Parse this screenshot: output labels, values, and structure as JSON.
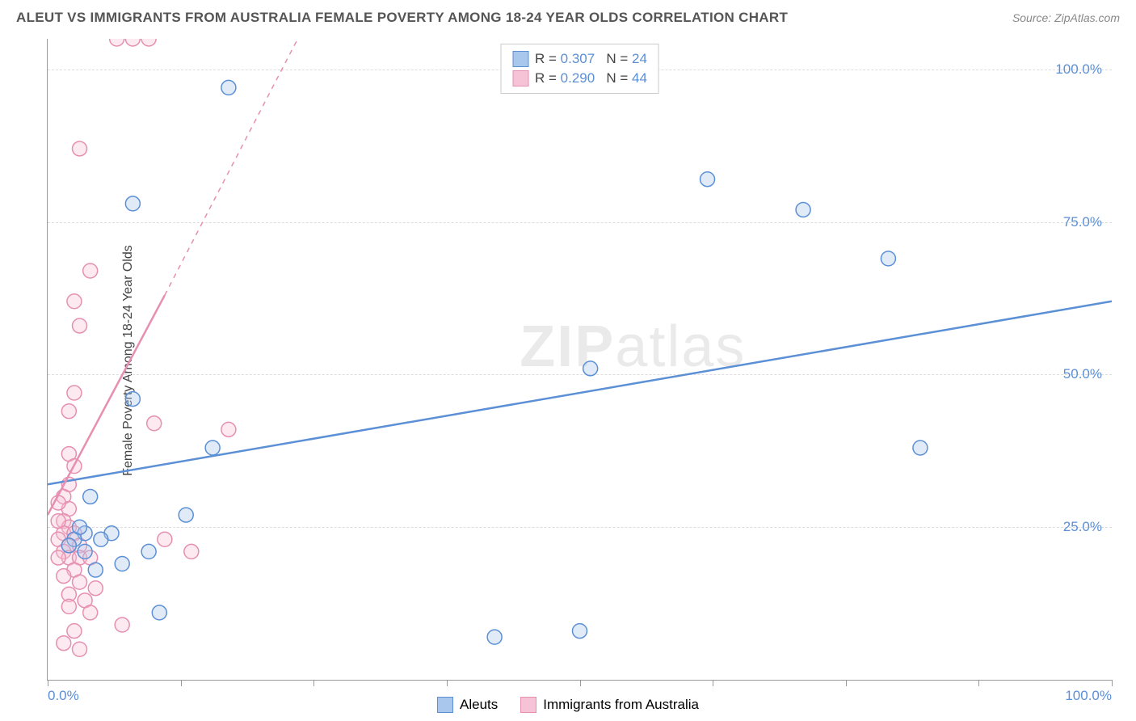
{
  "header": {
    "title": "ALEUT VS IMMIGRANTS FROM AUSTRALIA FEMALE POVERTY AMONG 18-24 YEAR OLDS CORRELATION CHART",
    "source": "Source: ZipAtlas.com"
  },
  "watermark": "ZIPatlas",
  "chart": {
    "type": "scatter",
    "ylabel": "Female Poverty Among 18-24 Year Olds",
    "xlim": [
      0,
      100
    ],
    "ylim": [
      0,
      105
    ],
    "ytick_labels": [
      "25.0%",
      "50.0%",
      "75.0%",
      "100.0%"
    ],
    "ytick_values": [
      25,
      50,
      75,
      100
    ],
    "xtick_labels": [
      "0.0%",
      "100.0%"
    ],
    "xtick_values": [
      0,
      100
    ],
    "xtick_marks": [
      0,
      12.5,
      25,
      37.5,
      50,
      62.5,
      75,
      87.5,
      100
    ],
    "ytick_color": "#5b8fd6",
    "xtick_color": "#5b8fd6",
    "grid_color": "#dddddd",
    "axis_color": "#999999",
    "background_color": "#ffffff",
    "marker_radius": 9,
    "marker_stroke_width": 1.5,
    "marker_fill_opacity": 0.35,
    "line_width": 2.5,
    "dash_width": 1.5,
    "series": [
      {
        "name": "Aleuts",
        "color_stroke": "#5b8fd6",
        "color_fill": "#a9c6ec",
        "R": "0.307",
        "N": "24",
        "trend_solid": {
          "x1": 0,
          "y1": 32,
          "x2": 100,
          "y2": 62
        },
        "points": [
          {
            "x": 17,
            "y": 97
          },
          {
            "x": 8,
            "y": 78
          },
          {
            "x": 62,
            "y": 82
          },
          {
            "x": 71,
            "y": 77
          },
          {
            "x": 79,
            "y": 69
          },
          {
            "x": 51,
            "y": 51
          },
          {
            "x": 8,
            "y": 46
          },
          {
            "x": 15.5,
            "y": 38
          },
          {
            "x": 82,
            "y": 38
          },
          {
            "x": 4,
            "y": 30
          },
          {
            "x": 13,
            "y": 27
          },
          {
            "x": 6,
            "y": 24
          },
          {
            "x": 3.5,
            "y": 24
          },
          {
            "x": 2.5,
            "y": 23
          },
          {
            "x": 3.5,
            "y": 21
          },
          {
            "x": 7,
            "y": 19
          },
          {
            "x": 9.5,
            "y": 21
          },
          {
            "x": 4.5,
            "y": 18
          },
          {
            "x": 10.5,
            "y": 11
          },
          {
            "x": 42,
            "y": 7
          },
          {
            "x": 50,
            "y": 8
          },
          {
            "x": 5,
            "y": 23
          },
          {
            "x": 3,
            "y": 25
          },
          {
            "x": 2,
            "y": 22
          }
        ]
      },
      {
        "name": "Immigrants from Australia",
        "color_stroke": "#e68fb0",
        "color_fill": "#f5c3d5",
        "R": "0.290",
        "N": "44",
        "trend_solid": {
          "x1": 0,
          "y1": 27,
          "x2": 11,
          "y2": 63
        },
        "trend_dashed": {
          "x1": 11,
          "y1": 63,
          "x2": 23.5,
          "y2": 105
        },
        "points": [
          {
            "x": 6.5,
            "y": 105
          },
          {
            "x": 8,
            "y": 105
          },
          {
            "x": 9.5,
            "y": 105
          },
          {
            "x": 3,
            "y": 87
          },
          {
            "x": 4,
            "y": 67
          },
          {
            "x": 2.5,
            "y": 62
          },
          {
            "x": 3,
            "y": 58
          },
          {
            "x": 2.5,
            "y": 47
          },
          {
            "x": 2,
            "y": 44
          },
          {
            "x": 10,
            "y": 42
          },
          {
            "x": 17,
            "y": 41
          },
          {
            "x": 2,
            "y": 37
          },
          {
            "x": 2.5,
            "y": 35
          },
          {
            "x": 2,
            "y": 32
          },
          {
            "x": 1.5,
            "y": 30
          },
          {
            "x": 2,
            "y": 28
          },
          {
            "x": 1.5,
            "y": 26
          },
          {
            "x": 2,
            "y": 25
          },
          {
            "x": 1.5,
            "y": 24
          },
          {
            "x": 2.5,
            "y": 24
          },
          {
            "x": 1,
            "y": 23
          },
          {
            "x": 2,
            "y": 22
          },
          {
            "x": 3,
            "y": 22
          },
          {
            "x": 1.5,
            "y": 21
          },
          {
            "x": 2,
            "y": 20
          },
          {
            "x": 3,
            "y": 20
          },
          {
            "x": 4,
            "y": 20
          },
          {
            "x": 11,
            "y": 23
          },
          {
            "x": 13.5,
            "y": 21
          },
          {
            "x": 2.5,
            "y": 18
          },
          {
            "x": 1.5,
            "y": 17
          },
          {
            "x": 3,
            "y": 16
          },
          {
            "x": 4.5,
            "y": 15
          },
          {
            "x": 2,
            "y": 14
          },
          {
            "x": 3.5,
            "y": 13
          },
          {
            "x": 2,
            "y": 12
          },
          {
            "x": 4,
            "y": 11
          },
          {
            "x": 7,
            "y": 9
          },
          {
            "x": 2.5,
            "y": 8
          },
          {
            "x": 1.5,
            "y": 6
          },
          {
            "x": 3,
            "y": 5
          },
          {
            "x": 1,
            "y": 20
          },
          {
            "x": 1,
            "y": 26
          },
          {
            "x": 1,
            "y": 29
          }
        ]
      }
    ],
    "legend_top": {
      "R_label": "R = ",
      "N_label": "N = "
    },
    "legend_bottom": {
      "labels": [
        "Aleuts",
        "Immigrants from Australia"
      ]
    }
  }
}
